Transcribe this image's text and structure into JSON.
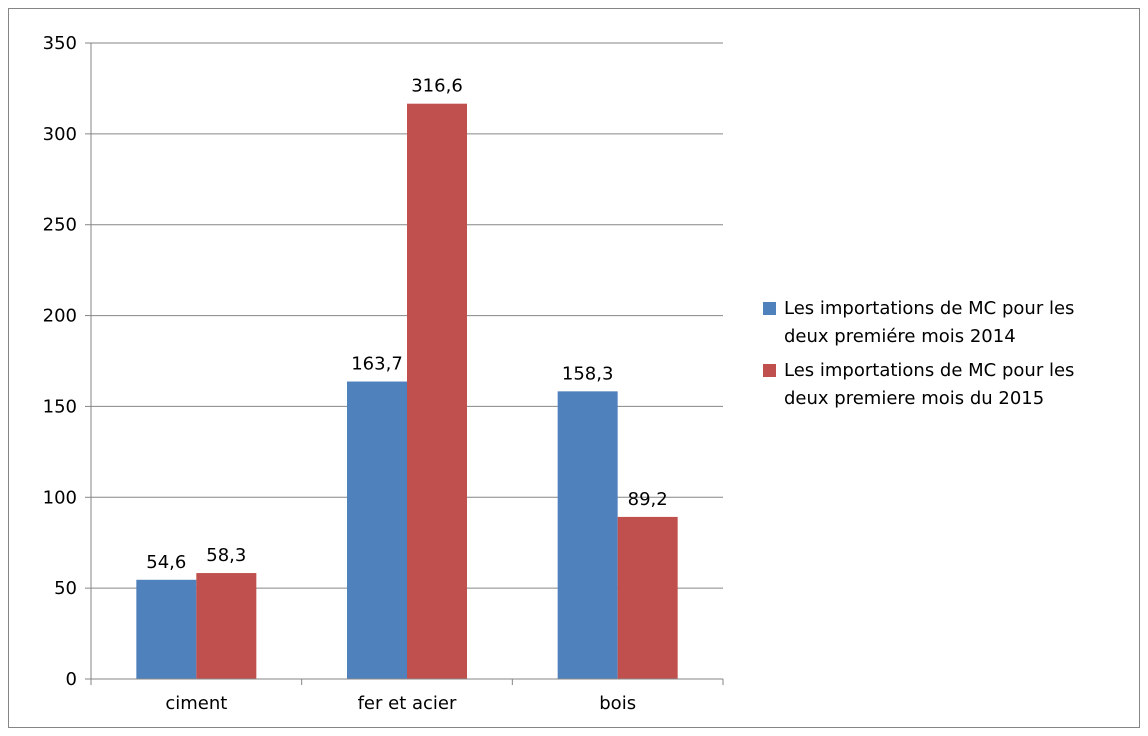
{
  "chart_data": {
    "type": "bar",
    "categories": [
      "ciment",
      "fer et acier",
      "bois"
    ],
    "series": [
      {
        "name": "Les importations de MC pour les deux premiére mois 2014",
        "legend_lines": [
          "Les importations de MC pour les",
          "deux premiére mois 2014"
        ],
        "values": [
          54.6,
          163.7,
          158.3
        ],
        "labels": [
          "54,6",
          "163,7",
          "158,3"
        ],
        "color": "#4F81BD"
      },
      {
        "name": "Les importations de MC pour les deux premiere mois du 2015",
        "legend_lines": [
          "Les importations de MC pour les",
          "deux premiere mois du 2015"
        ],
        "values": [
          58.3,
          316.6,
          89.2
        ],
        "labels": [
          "58,3",
          "316,6",
          "89,2"
        ],
        "color": "#C0504D"
      }
    ],
    "y_ticks": [
      "0",
      "50",
      "100",
      "150",
      "200",
      "250",
      "300",
      "350"
    ],
    "ylim": [
      0,
      350
    ],
    "grid": true,
    "legend_position": "right"
  }
}
